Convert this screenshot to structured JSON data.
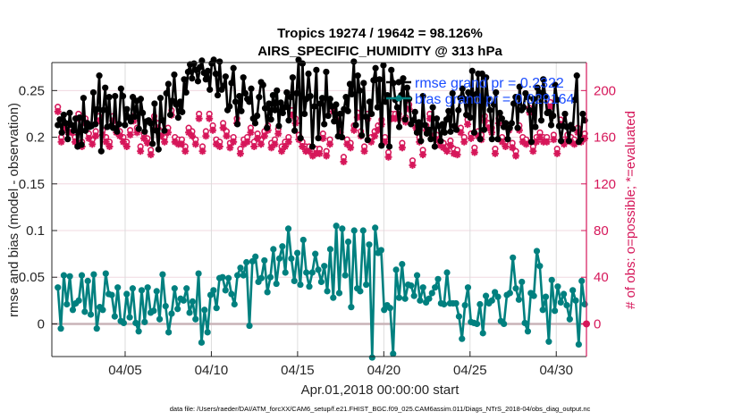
{
  "chart_data": {
    "type": "line",
    "title": "Tropics 19274 / 19642 = 98.126%",
    "subtitle": "AIRS_SPECIFIC_HUMIDITY @ 313 hPa",
    "xlabel": "Apr.01,2018 00:00:00 start",
    "ylabel": "rmse and bias (model - observation)",
    "ylabel_right": "# of obs: o=possible; *=evaluated",
    "footnote": "data file: /Users/raeder/DAI/ATM_forcXX/CAM6_setup/f.e21.FHIST_BGC.f09_025.CAM6assim.011/Diags_NTrS_2018-04/obs_diag_output.nc",
    "x_unit": "days since Apr.01,2018 00:00:00",
    "x_start_day": 0.25,
    "x_step_days": 0.25,
    "xlim_days": [
      0.0,
      31.0
    ],
    "x_ticks": [
      {
        "day": 4.25,
        "label": "04/05"
      },
      {
        "day": 9.25,
        "label": "04/10"
      },
      {
        "day": 14.25,
        "label": "04/15"
      },
      {
        "day": 19.25,
        "label": "04/20"
      },
      {
        "day": 24.25,
        "label": "04/25"
      },
      {
        "day": 29.25,
        "label": "04/30"
      }
    ],
    "ylim": [
      -0.035,
      0.28
    ],
    "y_ticks": [
      {
        "value": 0,
        "label": "0"
      },
      {
        "value": 0.05,
        "label": "0.05"
      },
      {
        "value": 0.1,
        "label": "0.1"
      },
      {
        "value": 0.15,
        "label": "0.15"
      },
      {
        "value": 0.2,
        "label": "0.2"
      },
      {
        "value": 0.25,
        "label": "0.25"
      }
    ],
    "ylim_right": [
      -28,
      224
    ],
    "y_ticks_right": [
      {
        "value": 0,
        "label": "0"
      },
      {
        "value": 40,
        "label": "40"
      },
      {
        "value": 80,
        "label": "80"
      },
      {
        "value": 120,
        "label": "120"
      },
      {
        "value": 160,
        "label": "160"
      },
      {
        "value": 200,
        "label": "200"
      }
    ],
    "grid": true,
    "legend_position": "top-right",
    "series": [
      {
        "name": "rmse",
        "legend": "rmse grand pr = 0.2322",
        "axis": "left",
        "color": "#000000",
        "marker": "filled-circle",
        "values": [
          0.213,
          0.219,
          0.205,
          0.224,
          0.215,
          0.198,
          0.226,
          0.213,
          0.207,
          0.22,
          0.19,
          0.221,
          0.192,
          0.242,
          0.207,
          0.215,
          0.211,
          0.212,
          0.248,
          0.214,
          0.23,
          0.266,
          0.185,
          0.229,
          0.253,
          0.211,
          0.243,
          0.212,
          0.21,
          0.244,
          0.206,
          0.214,
          0.252,
          0.244,
          0.213,
          0.23,
          0.221,
          0.217,
          0.243,
          0.222,
          0.239,
          0.209,
          0.241,
          0.226,
          0.206,
          0.217,
          0.218,
          0.215,
          0.193,
          0.236,
          0.207,
          0.187,
          0.242,
          0.218,
          0.207,
          0.247,
          0.257,
          0.224,
          0.239,
          0.267,
          0.235,
          0.221,
          0.238,
          0.227,
          0.262,
          0.248,
          0.27,
          0.278,
          0.263,
          0.279,
          0.272,
          0.26,
          0.275,
          0.282,
          0.269,
          0.262,
          0.271,
          0.251,
          0.279,
          0.283,
          0.268,
          0.245,
          0.281,
          0.251,
          0.255,
          0.265,
          0.229,
          0.233,
          0.258,
          0.274,
          0.238,
          0.214,
          0.244,
          0.228,
          0.264,
          0.247,
          0.241,
          0.238,
          0.252,
          0.22,
          0.215,
          0.223,
          0.243,
          0.259,
          0.256,
          0.231,
          0.21,
          0.236,
          0.219,
          0.245,
          0.229,
          0.25,
          0.212,
          0.237,
          0.226,
          0.232,
          0.248,
          0.218,
          0.243,
          0.264,
          0.207,
          0.247,
          0.283,
          0.199,
          0.279,
          0.225,
          0.241,
          0.268,
          0.244,
          0.19,
          0.233,
          0.272,
          0.199,
          0.236,
          0.242,
          0.214,
          0.27,
          0.223,
          0.241,
          0.233,
          0.217,
          0.235,
          0.201,
          0.225,
          0.2,
          0.23,
          0.243,
          0.228,
          0.257,
          0.246,
          0.281,
          0.213,
          0.266,
          0.25,
          0.202,
          0.258,
          0.222,
          0.197,
          0.238,
          0.225,
          0.261,
          0.274,
          0.232,
          0.262,
          0.191,
          0.277,
          0.238,
          0.245,
          0.19,
          0.272,
          0.258,
          0.24,
          0.232,
          0.211,
          0.245,
          0.263,
          0.219,
          0.253,
          0.241,
          0.214,
          0.218,
          0.227,
          0.205,
          0.216,
          0.196,
          0.244,
          0.213,
          0.204,
          0.208,
          0.198,
          0.232,
          0.19,
          0.22,
          0.212,
          0.196,
          0.214,
          0.205,
          0.219,
          0.228,
          0.206,
          0.247,
          0.212,
          0.208,
          0.229,
          0.242,
          0.252,
          0.241,
          0.224,
          0.248,
          0.221,
          0.271,
          0.205,
          0.246,
          0.268,
          0.198,
          0.268,
          0.208,
          0.264,
          0.241,
          0.229,
          0.198,
          0.235,
          0.248,
          0.198,
          0.226,
          0.22,
          0.211,
          0.215,
          0.198,
          0.21,
          0.215,
          0.236,
          0.243,
          0.21,
          0.254,
          0.229,
          0.232,
          0.247,
          0.243,
          0.229,
          0.195,
          0.241,
          0.211,
          0.253,
          0.248,
          0.218,
          0.262,
          0.244,
          0.226,
          0.227,
          0.213,
          0.223,
          0.256,
          0.24,
          0.212,
          0.196,
          0.212,
          0.225,
          0.211,
          0.196,
          0.213,
          0.209,
          0.24,
          0.266,
          0.195,
          0.198,
          0.225,
          0.218
        ]
      },
      {
        "name": "bias",
        "legend": "bias grand pr = 0.029164",
        "axis": "left",
        "color": "#00807f",
        "marker": "filled-circle",
        "values": [
          0.039,
          -0.005,
          0.052,
          0.021,
          0.051,
          0.015,
          0.022,
          0.025,
          0.052,
          0.013,
          0.046,
          0.01,
          0.053,
          -0.005,
          0.018,
          0.015,
          0.054,
          0.032,
          0.031,
          0.008,
          0.039,
          0.003,
          0.001,
          0.032,
          0.007,
          0.038,
          0.001,
          -0.008,
          0.036,
          0.002,
          0.039,
          0.012,
          0.014,
          0.035,
          0.005,
          0.053,
          0.019,
          -0.009,
          0.011,
          0.038,
          0.016,
          0.027,
          0.025,
          0.038,
          0.012,
          0.024,
          0.005,
          0.054,
          -0.02,
          0.015,
          -0.009,
          0.031,
          0.036,
          0.017,
          0.049,
          0.05,
          0.036,
          0.049,
          0.032,
          0.021,
          0.052,
          0.06,
          0.052,
          0.066,
          -0.002,
          0.067,
          0.072,
          0.045,
          0.049,
          0.068,
          0.034,
          0.05,
          0.08,
          0.043,
          0.07,
          0.083,
          0.055,
          0.102,
          0.07,
          0.046,
          0.076,
          0.042,
          0.09,
          0.055,
          0.04,
          0.055,
          0.075,
          0.058,
          0.045,
          0.062,
          0.035,
          0.08,
          0.028,
          0.105,
          0.033,
          0.102,
          0.052,
          0.088,
          0.018,
          0.1,
          0.038,
          0.035,
          0.1,
          0.042,
          0.085,
          -0.036,
          0.103,
          0.076,
          0.079,
          0.015,
          0.02,
          0.017,
          -0.032,
          0.058,
          0.028,
          0.064,
          0.027,
          0.042,
          0.041,
          0.03,
          0.052,
          0.025,
          0.039,
          0.023,
          0.027,
          0.033,
          0.039,
          0.048,
          0.022,
          0.021,
          0.055,
          0.022,
          0.022,
          0.022,
          0.008,
          -0.016,
          0.02,
          0.039,
          0.002,
          0.001,
          0.0,
          0.021,
          -0.01,
          0.03,
          0.022,
          0.025,
          0.034,
          0.029,
          0.003,
          0.0,
          0.031,
          0.033,
          0.071,
          0.038,
          0.026,
          0.045,
          0.001,
          -0.008,
          0.033,
          0.03,
          0.078,
          0.062,
          0.015,
          0.029,
          -0.019,
          0.047,
          0.014,
          0.04,
          0.023,
          0.032,
          0.02,
          0.005,
          0.036,
          0.025,
          -0.022,
          0.046,
          0.021
        ]
      },
      {
        "name": "obs possible",
        "legend": "",
        "axis": "right",
        "color": "#d6175a",
        "marker": "open-circle",
        "values": [
          186,
          160,
          172,
          168,
          168,
          160,
          180,
          156,
          176,
          163,
          158,
          165,
          178,
          166,
          160,
          156,
          178,
          168,
          165,
          160,
          156,
          166,
          178,
          168,
          152,
          163,
          159,
          149,
          178,
          172,
          165,
          160,
          168,
          183,
          160,
          158,
          158,
          152,
          168,
          165,
          158,
          180,
          152,
          165,
          180,
          170,
          158,
          156,
          172,
          165,
          155,
          160,
          176,
          150,
          158,
          160,
          168,
          156,
          163,
          158,
          165,
          170,
          155,
          158,
          167,
          152,
          156,
          160,
          183,
          176,
          162,
          156,
          152,
          152,
          148,
          150,
          150,
          163,
          148,
          158,
          186,
          178,
          168,
          143,
          158,
          155,
          170,
          181,
          165,
          152,
          180,
          160,
          165,
          170,
          175,
          160,
          147,
          180,
          180,
          180,
          155,
          177,
          188,
          140,
          172,
          160,
          149,
          170,
          180,
          165,
          162,
          157,
          155,
          152,
          157,
          150,
          149,
          168,
          160,
          175,
          163,
          151,
          165,
          162,
          178,
          172,
          168,
          150,
          176,
          160,
          156,
          170,
          155,
          148,
          170,
          160,
          158,
          185,
          152,
          160,
          164,
          160,
          160,
          190,
          162,
          150,
          175,
          158,
          162,
          160,
          158,
          168,
          160,
          163
        ]
      },
      {
        "name": "obs evaluated",
        "legend": "",
        "axis": "right",
        "color": "#d6175a",
        "marker": "asterisk",
        "values": [
          182,
          156,
          168,
          164,
          164,
          156,
          176,
          152,
          172,
          159,
          154,
          161,
          174,
          162,
          156,
          152,
          174,
          164,
          161,
          156,
          152,
          162,
          174,
          164,
          148,
          159,
          155,
          145,
          174,
          168,
          161,
          156,
          164,
          179,
          156,
          154,
          154,
          148,
          164,
          161,
          154,
          176,
          148,
          161,
          176,
          166,
          154,
          152,
          168,
          161,
          151,
          156,
          172,
          146,
          154,
          156,
          164,
          152,
          159,
          154,
          161,
          166,
          151,
          154,
          163,
          148,
          152,
          156,
          179,
          172,
          158,
          152,
          148,
          148,
          144,
          146,
          146,
          159,
          144,
          154,
          182,
          174,
          164,
          139,
          154,
          151,
          166,
          177,
          161,
          148,
          176,
          156,
          161,
          166,
          171,
          156,
          143,
          176,
          176,
          176,
          151,
          173,
          184,
          136,
          168,
          156,
          145,
          166,
          176,
          161,
          158,
          153,
          151,
          148,
          153,
          146,
          145,
          164,
          156,
          171,
          159,
          147,
          161,
          158,
          174,
          168,
          164,
          146,
          172,
          156,
          152,
          166,
          151,
          144,
          166,
          156,
          154,
          181,
          148,
          156,
          160,
          156,
          156,
          186,
          158,
          146,
          171,
          154,
          158,
          156,
          154,
          164,
          156,
          159
        ]
      }
    ],
    "zero_line": {
      "value": 0,
      "color": "#c9b4b8"
    }
  }
}
